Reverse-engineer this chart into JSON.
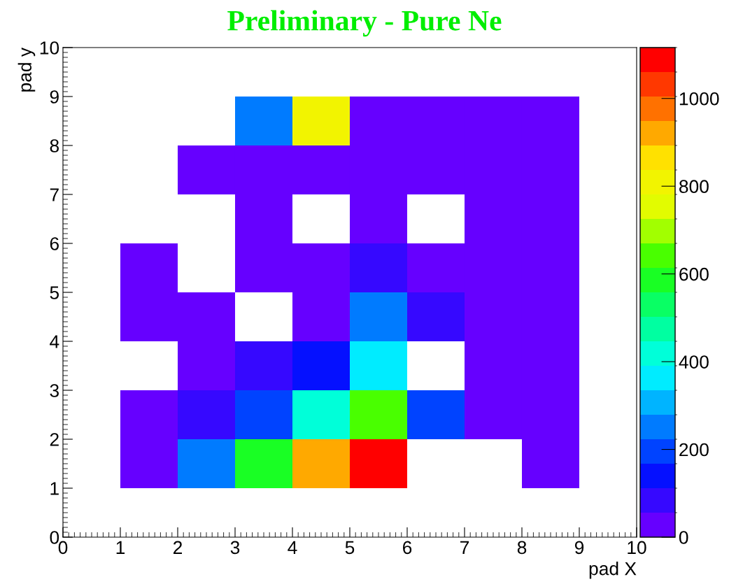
{
  "chart_data": {
    "type": "heatmap",
    "xlabel": "pad X",
    "ylabel": "pad y",
    "annotations": [
      "Preliminary - Pure Ne"
    ],
    "x": [
      1.5,
      2.5,
      3.5,
      4.5,
      5.5,
      6.5,
      7.5,
      8.5
    ],
    "y": [
      8.5,
      7.5,
      6.5,
      5.5,
      4.5,
      3.5,
      2.5,
      1.5
    ],
    "cells": [
      [
        null,
        null,
        250,
        810,
        28,
        28,
        28,
        28
      ],
      [
        null,
        28,
        28,
        28,
        28,
        28,
        28,
        28
      ],
      [
        null,
        null,
        28,
        null,
        28,
        null,
        28,
        28
      ],
      [
        28,
        null,
        28,
        28,
        85,
        28,
        28,
        28
      ],
      [
        28,
        28,
        null,
        28,
        250,
        85,
        28,
        28
      ],
      [
        null,
        28,
        85,
        140,
        360,
        null,
        28,
        28
      ],
      [
        28,
        85,
        200,
        420,
        640,
        200,
        28,
        28
      ],
      [
        28,
        250,
        580,
        930,
        1090,
        null,
        null,
        28
      ]
    ],
    "xlim": [
      0,
      10
    ],
    "ylim": [
      0,
      10
    ],
    "xticks": [
      0,
      1,
      2,
      3,
      4,
      5,
      6,
      7,
      8,
      9,
      10
    ],
    "yticks": [
      0,
      1,
      2,
      3,
      4,
      5,
      6,
      7,
      8,
      9,
      10
    ],
    "clim": [
      0,
      1116
    ],
    "cticks": [
      0,
      200,
      400,
      600,
      800,
      1000
    ],
    "grid": false
  }
}
